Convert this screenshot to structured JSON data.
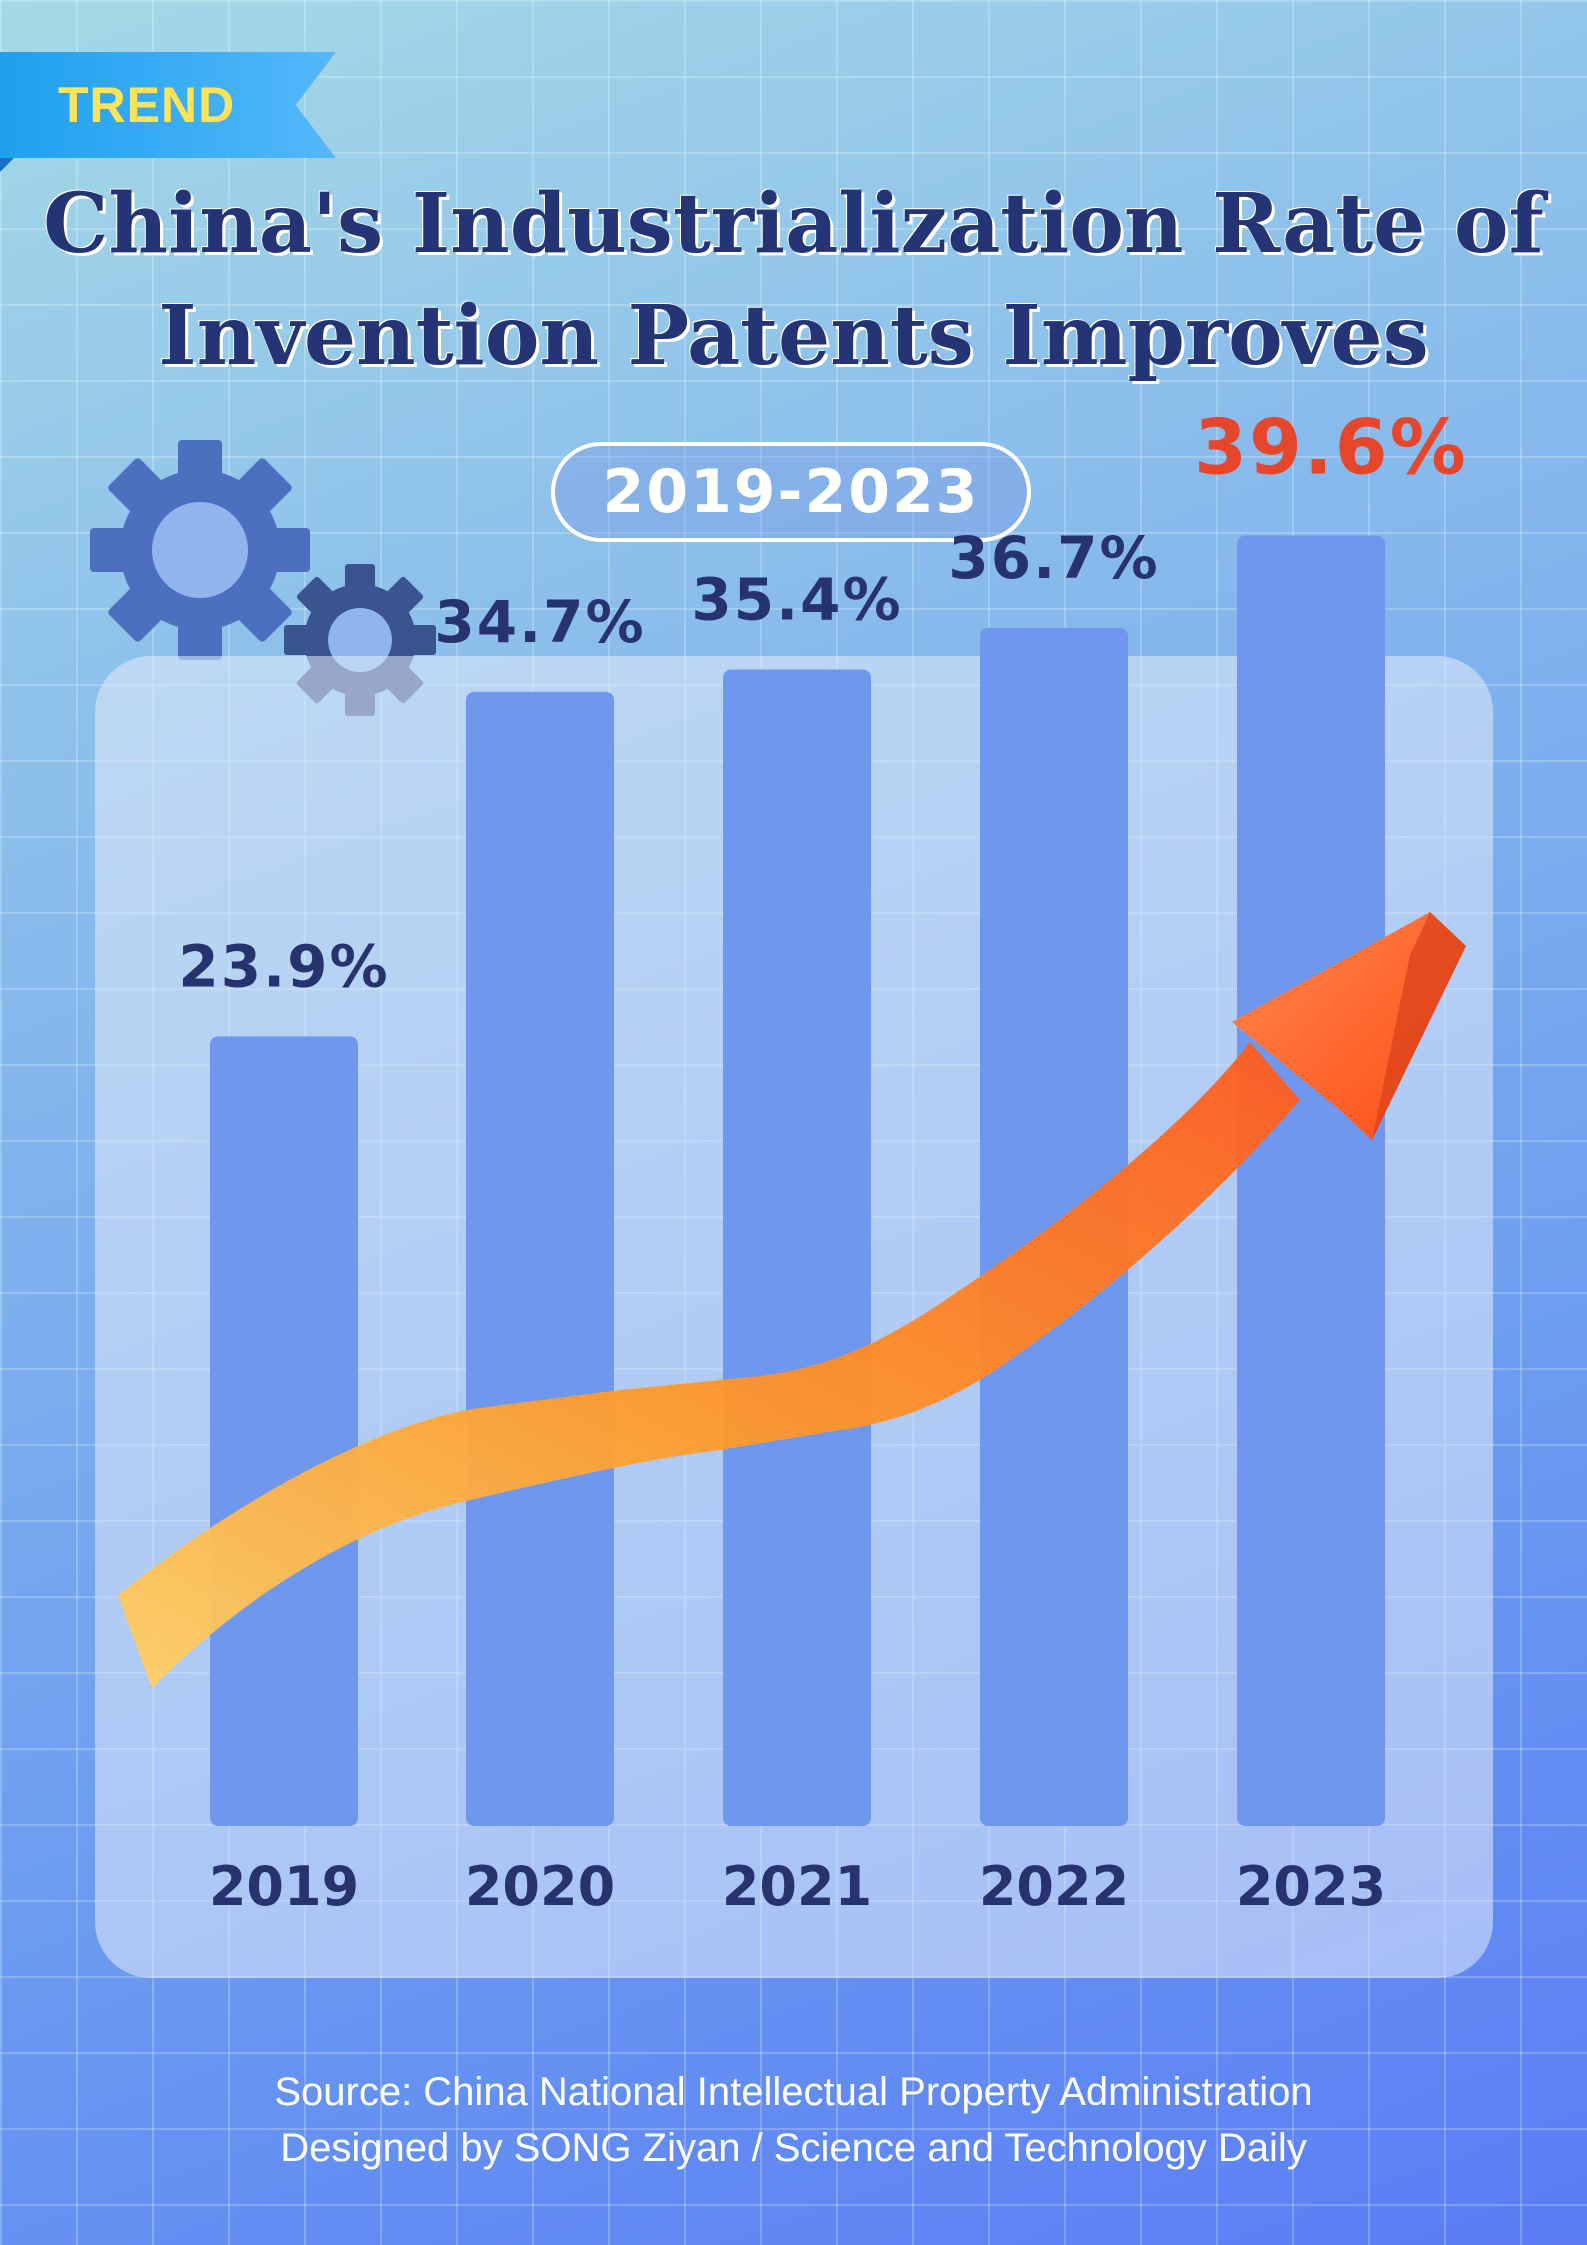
{
  "header": {
    "ribbon_label": "TREND",
    "title_line1": "China's Industrialization Rate of",
    "title_line2": "Invention Patents Improves",
    "period": "2019-2023"
  },
  "chart_data": {
    "type": "bar",
    "title": "China's Industrialization Rate of Invention Patents Improves",
    "categories": [
      "2019",
      "2020",
      "2021",
      "2022",
      "2023"
    ],
    "values": [
      23.9,
      34.7,
      35.4,
      36.7,
      39.6
    ],
    "value_labels": [
      "23.9%",
      "34.7%",
      "35.4%",
      "36.7%",
      "39.6%"
    ],
    "unit": "%",
    "highlight_index": 4,
    "grid": false,
    "legend": "none"
  },
  "colors": {
    "bar": "#7097ee",
    "label": "#26336f",
    "highlight": "#e6462c",
    "arrow_start": "#ffd066",
    "arrow_end": "#ff5a1f"
  },
  "footer": {
    "source": "Source: China National Intellectual Property Administration",
    "designer": "Designed by SONG Ziyan / Science and Technology Daily"
  }
}
